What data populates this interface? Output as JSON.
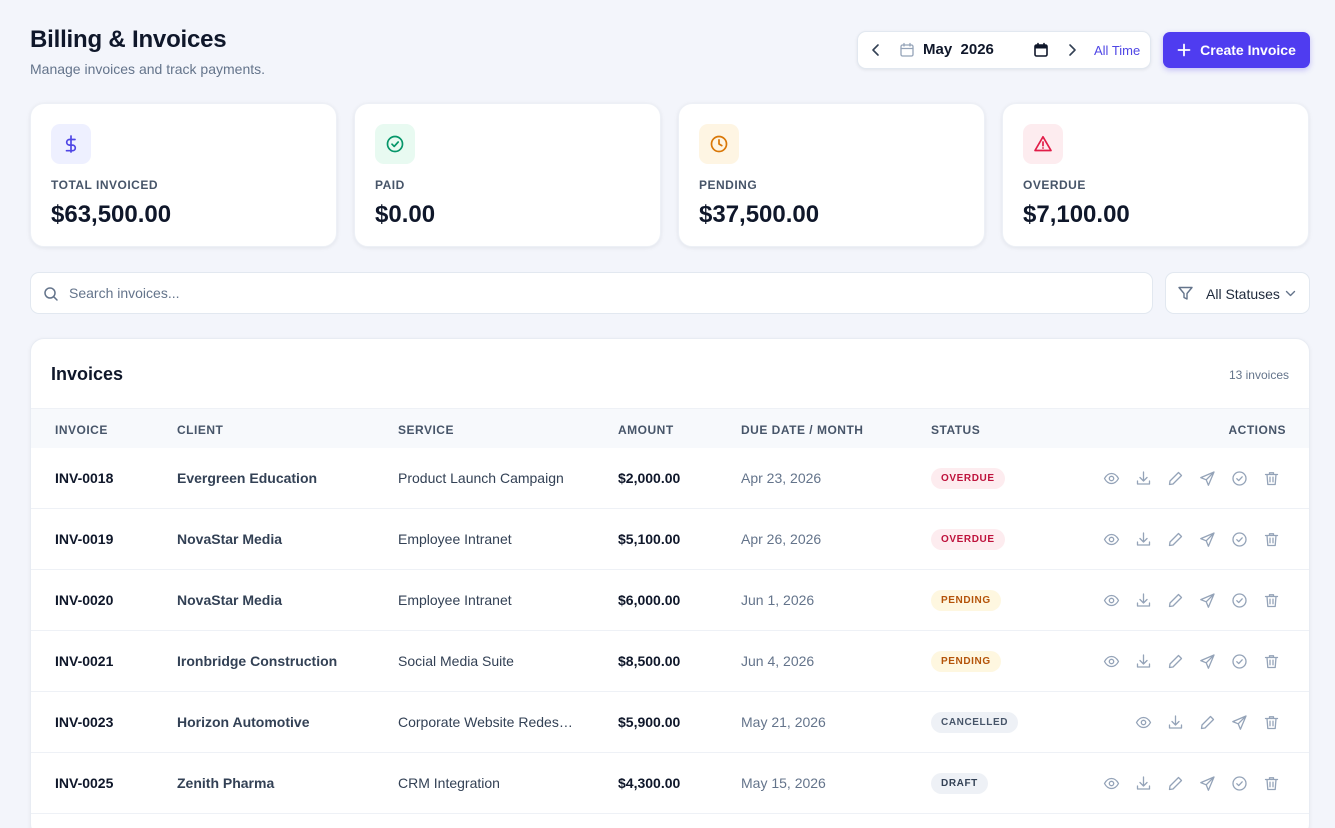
{
  "header": {
    "title": "Billing & Invoices",
    "subtitle": "Manage invoices and track payments."
  },
  "date_picker": {
    "month": "May  2026",
    "all_time_label": "All Time"
  },
  "create_button": {
    "label": "Create Invoice"
  },
  "stats": [
    {
      "label": "TOTAL INVOICED",
      "value": "$63,500.00",
      "icon": "dollar-icon",
      "color": "#4f46e5",
      "bg": "#eef0ff"
    },
    {
      "label": "PAID",
      "value": "$0.00",
      "icon": "check-circle-icon",
      "color": "#059669",
      "bg": "#e8faf1"
    },
    {
      "label": "PENDING",
      "value": "$37,500.00",
      "icon": "clock-icon",
      "color": "#d97706",
      "bg": "#fef5e3"
    },
    {
      "label": "OVERDUE",
      "value": "$7,100.00",
      "icon": "warning-icon",
      "color": "#e11d48",
      "bg": "#fdecef"
    }
  ],
  "search": {
    "placeholder": "Search invoices..."
  },
  "status_filter": {
    "selected": "All Statuses"
  },
  "invoices": {
    "title": "Invoices",
    "count": "13 invoices",
    "columns": {
      "invoice": "INVOICE",
      "client": "CLIENT",
      "service": "SERVICE",
      "amount": "AMOUNT",
      "due": "DUE DATE / MONTH",
      "status": "STATUS",
      "actions": "ACTIONS"
    },
    "rows": [
      {
        "invoice": "INV-0018",
        "client": "Evergreen Education",
        "service": "Product Launch Campaign",
        "amount": "$2,000.00",
        "due": "Apr 23, 2026",
        "status": "OVERDUE",
        "status_key": "overdue",
        "actions": [
          "view",
          "download",
          "edit",
          "send",
          "mark-paid",
          "delete"
        ]
      },
      {
        "invoice": "INV-0019",
        "client": "NovaStar Media",
        "service": "Employee Intranet",
        "amount": "$5,100.00",
        "due": "Apr 26, 2026",
        "status": "OVERDUE",
        "status_key": "overdue",
        "actions": [
          "view",
          "download",
          "edit",
          "send",
          "mark-paid",
          "delete"
        ]
      },
      {
        "invoice": "INV-0020",
        "client": "NovaStar Media",
        "service": "Employee Intranet",
        "amount": "$6,000.00",
        "due": "Jun 1, 2026",
        "status": "PENDING",
        "status_key": "pending",
        "actions": [
          "view",
          "download",
          "edit",
          "send",
          "mark-paid",
          "delete"
        ]
      },
      {
        "invoice": "INV-0021",
        "client": "Ironbridge Construction",
        "service": "Social Media Suite",
        "amount": "$8,500.00",
        "due": "Jun 4, 2026",
        "status": "PENDING",
        "status_key": "pending",
        "actions": [
          "view",
          "download",
          "edit",
          "send",
          "mark-paid",
          "delete"
        ]
      },
      {
        "invoice": "INV-0023",
        "client": "Horizon Automotive",
        "service": "Corporate Website Redesi...",
        "amount": "$5,900.00",
        "due": "May 21, 2026",
        "status": "CANCELLED",
        "status_key": "cancelled",
        "actions": [
          "view",
          "download",
          "edit",
          "send",
          "delete"
        ]
      },
      {
        "invoice": "INV-0025",
        "client": "Zenith Pharma",
        "service": "CRM Integration",
        "amount": "$4,300.00",
        "due": "May 15, 2026",
        "status": "DRAFT",
        "status_key": "draft",
        "actions": [
          "view",
          "download",
          "edit",
          "send",
          "mark-paid",
          "delete"
        ]
      }
    ]
  }
}
